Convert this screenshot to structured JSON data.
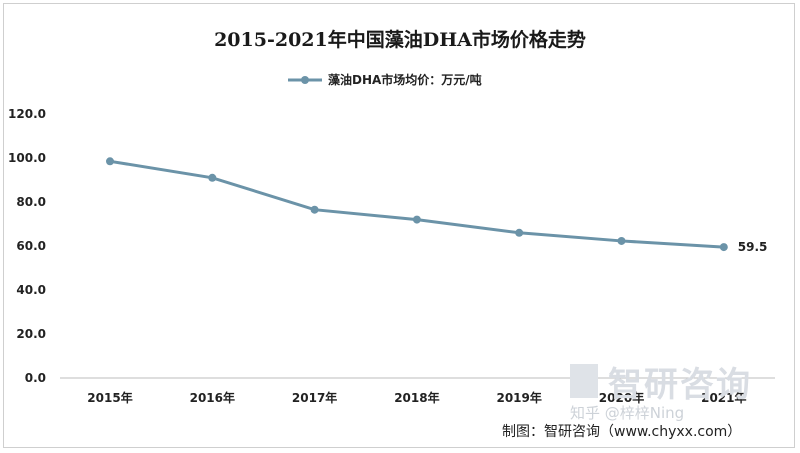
{
  "chart_data": {
    "type": "line",
    "title": "2015-2021年中国藻油DHA市场价格走势",
    "categories": [
      "2015年",
      "2016年",
      "2017年",
      "2018年",
      "2019年",
      "2020年",
      "2021年"
    ],
    "series": [
      {
        "name": "藻油DHA市场均价：万元/吨",
        "values": [
          98.5,
          91.0,
          76.5,
          72.0,
          66.0,
          62.3,
          59.5
        ]
      }
    ],
    "ylim": [
      0,
      120
    ],
    "yticks": [
      "120.0",
      "100.0",
      "80.0",
      "60.0",
      "40.0",
      "20.0",
      "0.0"
    ],
    "data_labels": [
      {
        "index": 6,
        "text": "59.5"
      }
    ],
    "grid": false,
    "legend_position": "top",
    "line_color": "#6b93a8",
    "marker_color": "#6b93a8"
  },
  "watermark": {
    "logo_text": "智研咨询",
    "overlay": "知乎 @梓梓Ning"
  },
  "source": "制图：智研咨询（www.chyxx.com）"
}
